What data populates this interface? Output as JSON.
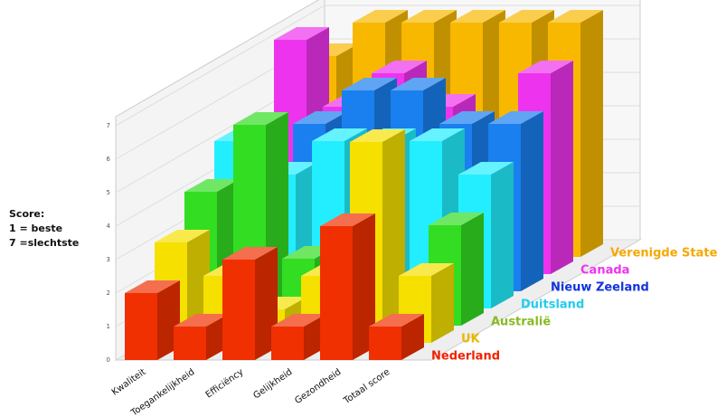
{
  "chart_data": {
    "type": "bar3d",
    "ylabel": [
      "Score:",
      "1 = beste",
      "7 =slechtste"
    ],
    "categories": [
      "Kwaliteit",
      "Toegankelijkheid",
      "Efficiëncy",
      "Gelijkheid",
      "Gezondheid",
      "Totaal score"
    ],
    "series": [
      {
        "name": "Nederland",
        "color": "#f03000",
        "values": [
          2,
          1,
          3,
          1,
          4,
          1
        ]
      },
      {
        "name": "UK",
        "color": "#f5e000",
        "values": [
          3,
          2,
          1,
          2,
          6,
          2
        ]
      },
      {
        "name": "Australië",
        "color": "#33dd22",
        "values": [
          4,
          6,
          2,
          3,
          1,
          3
        ]
      },
      {
        "name": "Duitsland",
        "color": "#22eeff",
        "values": [
          5,
          4,
          5,
          5,
          5,
          4
        ]
      },
      {
        "name": "Nieuw Zeeland",
        "color": "#1a7fef",
        "values": [
          3,
          5,
          6,
          6,
          5,
          5
        ]
      },
      {
        "name": "Canada",
        "color": "#ee33ee",
        "values": [
          7,
          5,
          6,
          5,
          4,
          6
        ]
      },
      {
        "name": "Verenigde Staten",
        "color": "#f8b800",
        "values": [
          6,
          7,
          7,
          7,
          7,
          7
        ]
      }
    ],
    "label_colors": [
      "#ee2200",
      "#e8b800",
      "#88bb22",
      "#22ccee",
      "#1133dd",
      "#ee33ee",
      "#f5a800"
    ],
    "ylim": [
      0,
      7
    ],
    "yticks": [
      0,
      1,
      2,
      3,
      4,
      5,
      6,
      7
    ],
    "grid": true
  }
}
